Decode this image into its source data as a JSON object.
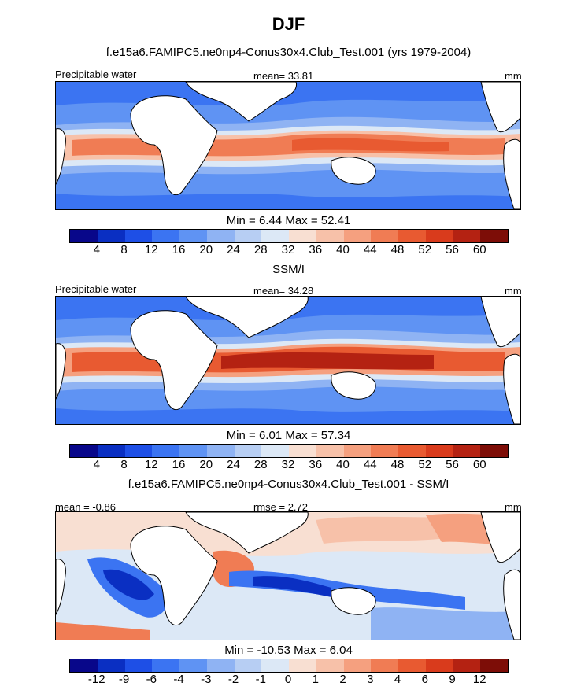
{
  "title": "DJF",
  "units": "mm",
  "colors": {
    "land": "#ffffff",
    "coast": "#000000",
    "scale": [
      "#08078a",
      "#0a2fc2",
      "#1e4fe6",
      "#3b74f2",
      "#5f93f3",
      "#8fb3f3",
      "#b7cef3",
      "#dce8f6",
      "#f8dfd2",
      "#f7c1a9",
      "#f5a07f",
      "#f07c54",
      "#e85a31",
      "#d93b1c",
      "#b42212",
      "#7d0d07"
    ]
  },
  "chart_data": [
    {
      "type": "heatmap",
      "panel": "model",
      "title": "f.e15a6.FAMIPC5.ne0np4-Conus30x4.Club_Test.001 (yrs 1979-2004)",
      "left_label": "Precipitable water",
      "center_label": "mean=  33.81",
      "right_label": "mm",
      "mean": 33.81,
      "min": 6.44,
      "max": 52.41,
      "min_text": "Min =   6.44",
      "max_text": "Max =  52.41",
      "levels": [
        "4",
        "8",
        "12",
        "16",
        "20",
        "24",
        "28",
        "32",
        "36",
        "40",
        "44",
        "48",
        "52",
        "56",
        "60"
      ]
    },
    {
      "type": "heatmap",
      "panel": "observations",
      "title": "SSM/I",
      "left_label": "Precipitable water",
      "center_label": "mean=  34.28",
      "right_label": "mm",
      "mean": 34.28,
      "min": 6.01,
      "max": 57.34,
      "min_text": "Min =   6.01",
      "max_text": "Max =  57.34",
      "levels": [
        "4",
        "8",
        "12",
        "16",
        "20",
        "24",
        "28",
        "32",
        "36",
        "40",
        "44",
        "48",
        "52",
        "56",
        "60"
      ]
    },
    {
      "type": "heatmap",
      "panel": "difference",
      "title": "f.e15a6.FAMIPC5.ne0np4-Conus30x4.Club_Test.001 - SSM/I",
      "left_label": "mean =  -0.86",
      "center_label": "rmse =   2.72",
      "right_label": "mm",
      "mean": -0.86,
      "rmse": 2.72,
      "min": -10.53,
      "max": 6.04,
      "min_text": "Min = -10.53",
      "max_text": "Max =   6.04",
      "levels": [
        "-12",
        "-9",
        "-6",
        "-4",
        "-3",
        "-2",
        "-1",
        "0",
        "1",
        "2",
        "3",
        "4",
        "6",
        "9",
        "12"
      ]
    }
  ]
}
